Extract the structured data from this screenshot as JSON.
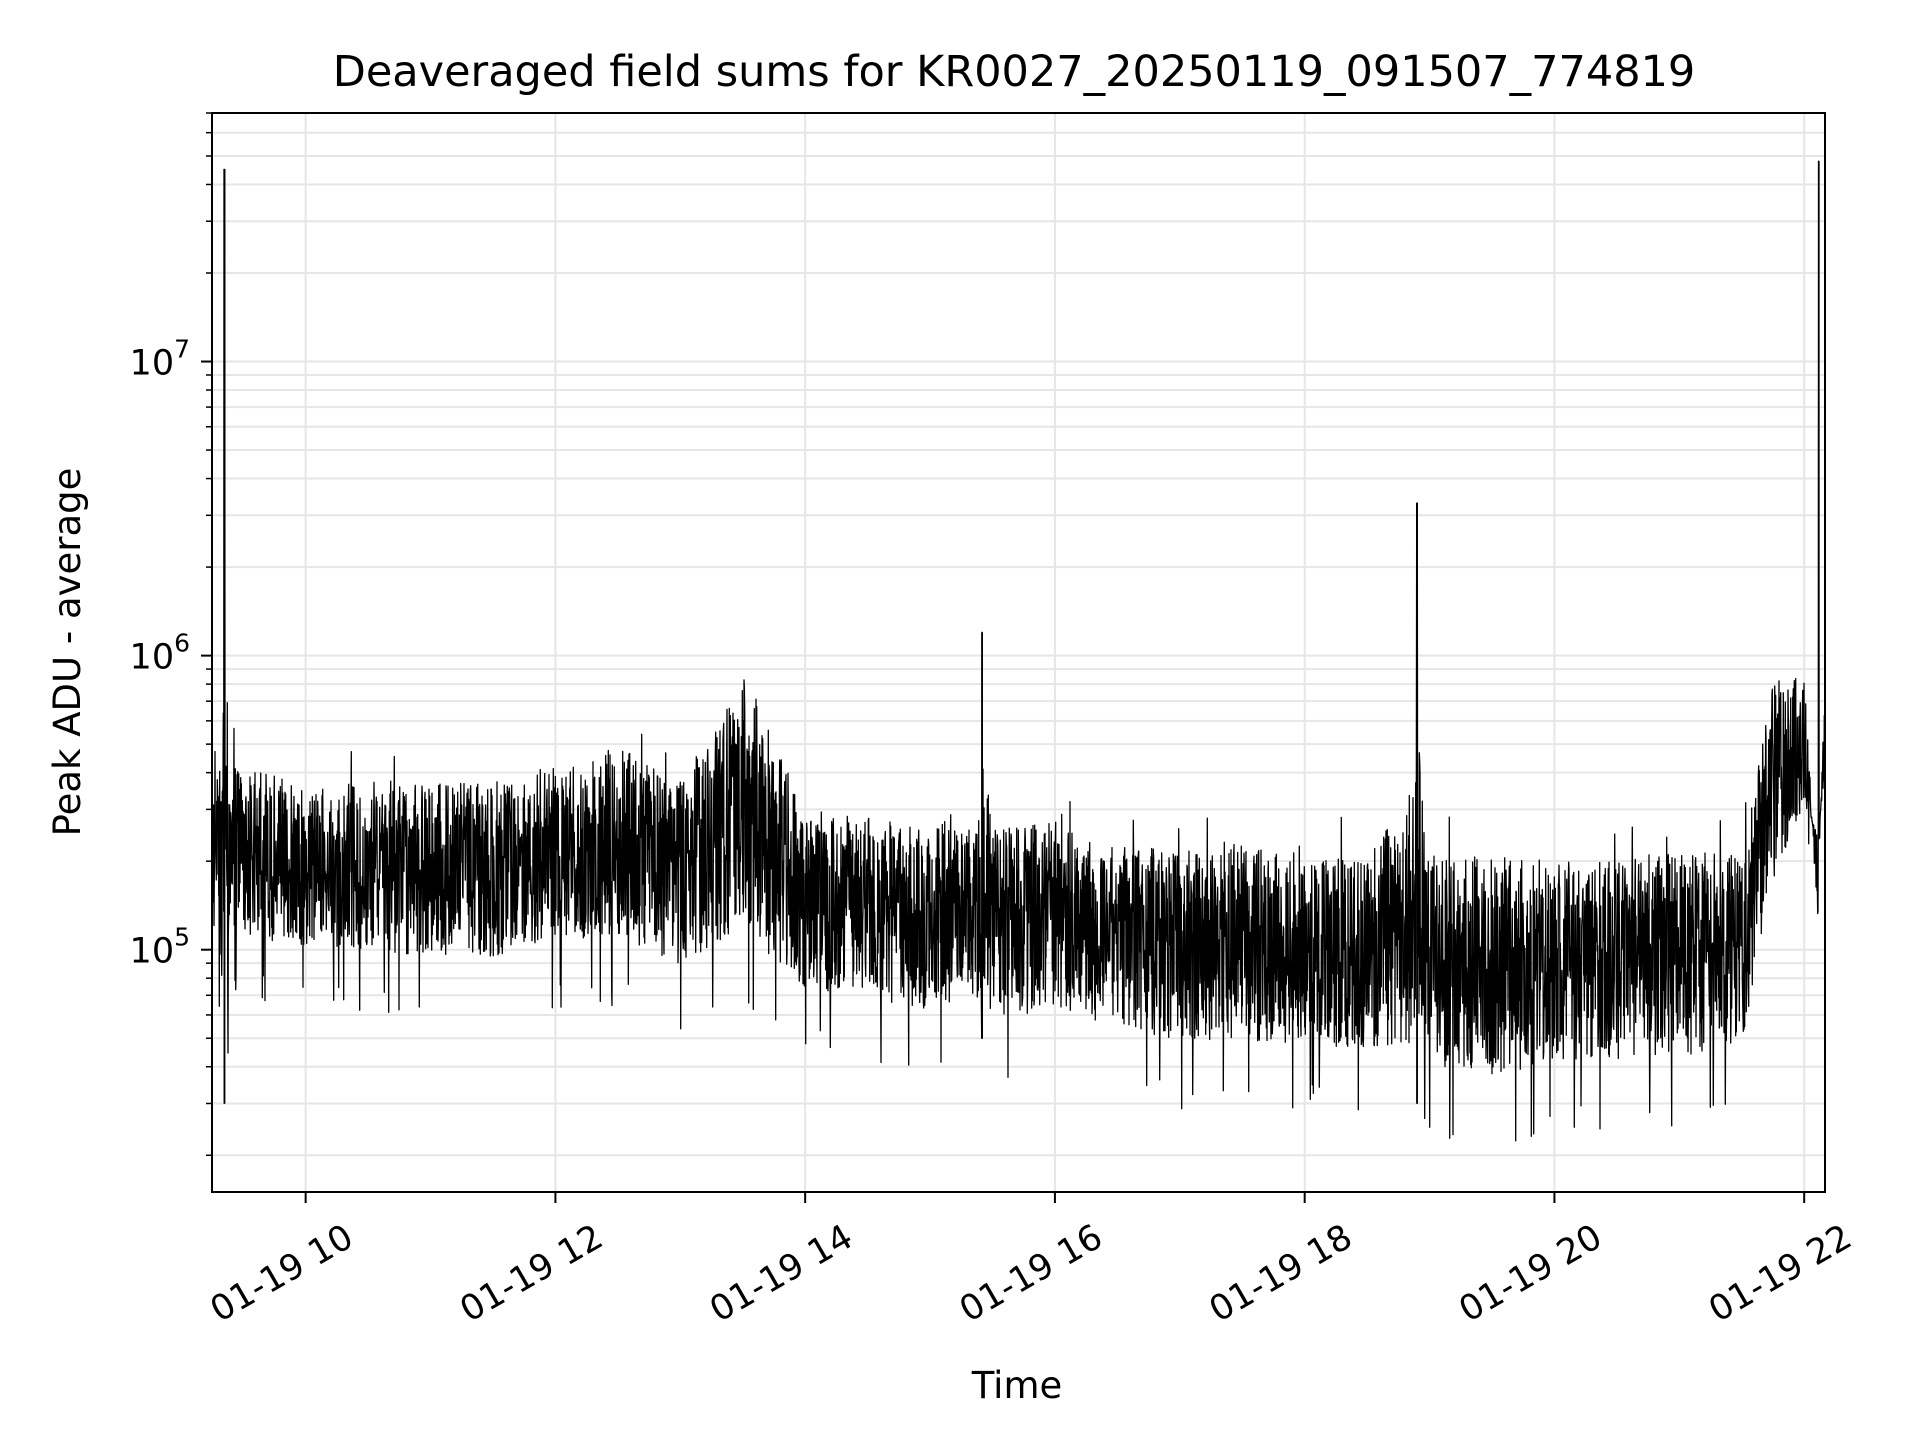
{
  "chart_data": {
    "type": "line",
    "title": "Deaveraged field sums for KR0027_20250119_091507_774819",
    "xlabel": "Time",
    "ylabel": "Peak ADU - average",
    "x_axis_type": "datetime",
    "xlim": [
      "2025-01-19T09:15",
      "2025-01-19T22:10"
    ],
    "ylim": [
      15000,
      70000000
    ],
    "y_scale": "log",
    "grid": true,
    "line_color": "#000000",
    "x_ticks": [
      {
        "value": "2025-01-19T10:00",
        "label": "01-19 10"
      },
      {
        "value": "2025-01-19T12:00",
        "label": "01-19 12"
      },
      {
        "value": "2025-01-19T14:00",
        "label": "01-19 14"
      },
      {
        "value": "2025-01-19T16:00",
        "label": "01-19 16"
      },
      {
        "value": "2025-01-19T18:00",
        "label": "01-19 18"
      },
      {
        "value": "2025-01-19T20:00",
        "label": "01-19 20"
      },
      {
        "value": "2025-01-19T22:00",
        "label": "01-19 22"
      }
    ],
    "y_ticks": [
      {
        "value": 100000,
        "base": "10",
        "exponent": "5"
      },
      {
        "value": 1000000,
        "base": "10",
        "exponent": "6"
      },
      {
        "value": 10000000,
        "base": "10",
        "exponent": "7"
      }
    ],
    "series": [
      {
        "x": [
          "2025-01-19T09:15",
          "2025-01-19T09:18",
          "2025-01-19T09:21",
          "2025-01-19T09:25",
          "2025-01-19T09:30",
          "2025-01-19T09:45",
          "2025-01-19T10:00",
          "2025-01-19T10:30",
          "2025-01-19T11:00",
          "2025-01-19T11:30",
          "2025-01-19T12:00",
          "2025-01-19T12:30",
          "2025-01-19T13:00",
          "2025-01-19T13:30",
          "2025-01-19T14:00",
          "2025-01-19T14:30",
          "2025-01-19T15:00",
          "2025-01-19T15:25",
          "2025-01-19T15:30",
          "2025-01-19T16:00",
          "2025-01-19T16:30",
          "2025-01-19T17:00",
          "2025-01-19T17:30",
          "2025-01-19T18:00",
          "2025-01-19T18:30",
          "2025-01-19T18:54",
          "2025-01-19T19:00",
          "2025-01-19T19:30",
          "2025-01-19T20:00",
          "2025-01-19T20:30",
          "2025-01-19T21:00",
          "2025-01-19T21:30",
          "2025-01-19T21:45",
          "2025-01-19T22:00",
          "2025-01-19T22:07",
          "2025-01-19T22:10"
        ],
        "y": [
          250000,
          300000,
          45000000,
          250000,
          230000,
          220000,
          200000,
          210000,
          200000,
          200000,
          230000,
          250000,
          200000,
          350000,
          160000,
          150000,
          140000,
          1200000,
          130000,
          140000,
          120000,
          110000,
          115000,
          105000,
          105000,
          3300000,
          100000,
          95000,
          100000,
          100000,
          105000,
          110000,
          400000,
          550000,
          48000000,
          600000
        ],
        "y_lower": [
          90000,
          80000,
          30000,
          90000,
          85000,
          80000,
          80000,
          75000,
          70000,
          70000,
          80000,
          80000,
          65000,
          75000,
          55000,
          50000,
          45000,
          50000,
          40000,
          45000,
          40000,
          35000,
          35000,
          35000,
          33000,
          30000,
          28000,
          25000,
          30000,
          30000,
          30000,
          35000,
          120000,
          250000,
          300000,
          300000
        ]
      }
    ]
  }
}
